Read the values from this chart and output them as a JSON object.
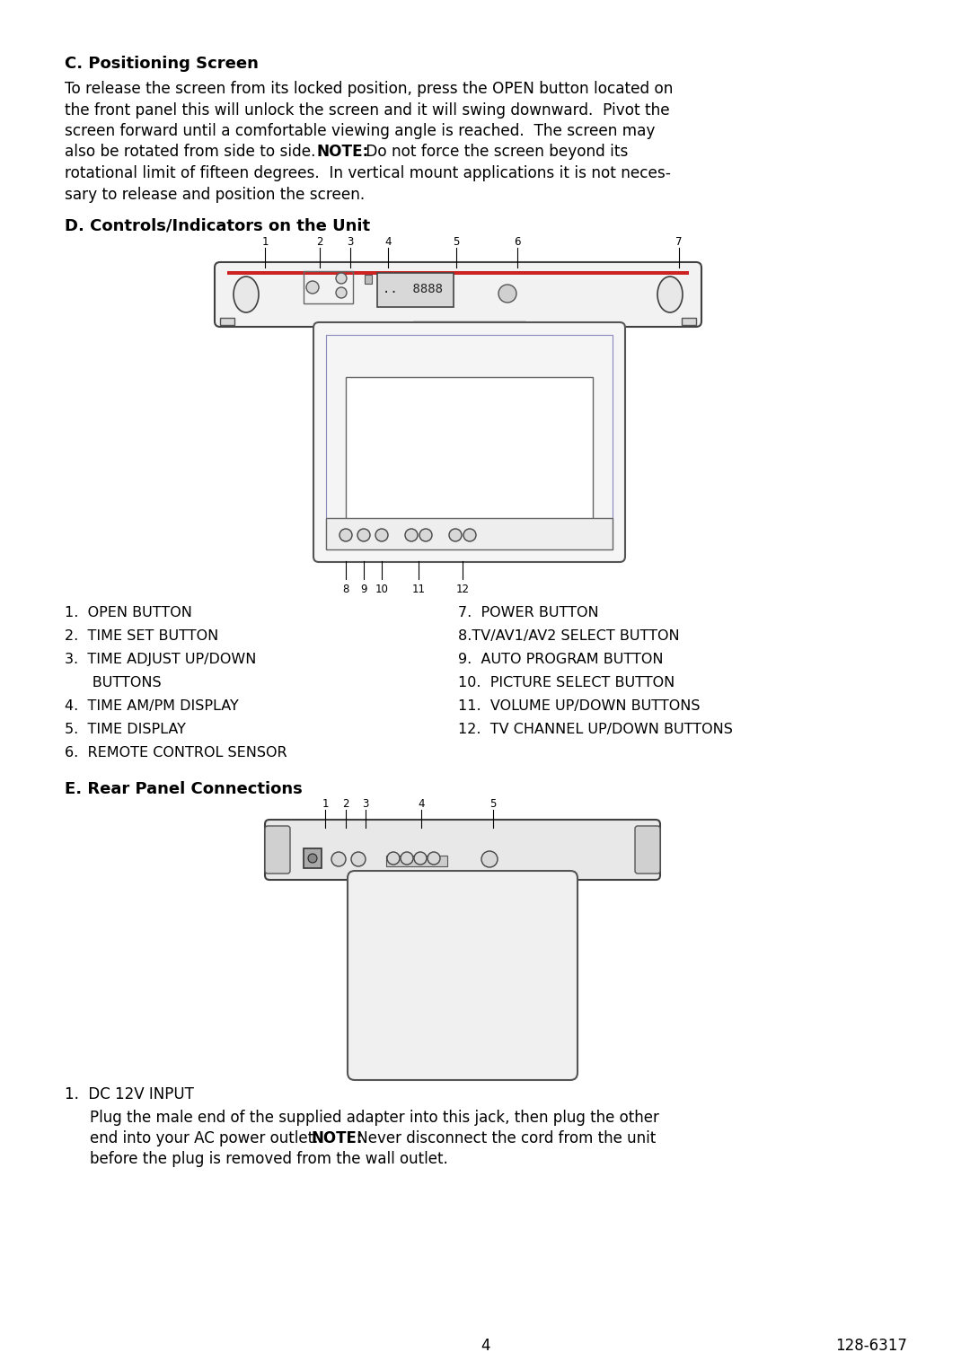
{
  "bg_color": "#ffffff",
  "section_c_heading": "C. Positioning Screen",
  "section_d_heading": "D. Controls/Indicators on the Unit",
  "section_e_heading": "E. Rear Panel Connections",
  "left_list": [
    "1.  OPEN BUTTON",
    "2.  TIME SET BUTTON",
    "3.  TIME ADJUST UP/DOWN",
    "     BUTTONS",
    "4.  TIME AM/PM DISPLAY",
    "5.  TIME DISPLAY",
    "6.  REMOTE CONTROL SENSOR"
  ],
  "right_list": [
    "7.  POWER BUTTON",
    "8.TV/AV1/AV2 SELECT BUTTON",
    "9.  AUTO PROGRAM BUTTON",
    "10.  PICTURE SELECT BUTTON",
    "11.  VOLUME UP/DOWN BUTTONS",
    "12.  TV CHANNEL UP/DOWN BUTTONS"
  ],
  "dc12v_label": "1.  DC 12V INPUT",
  "page_number": "4",
  "part_number": "128-6317"
}
